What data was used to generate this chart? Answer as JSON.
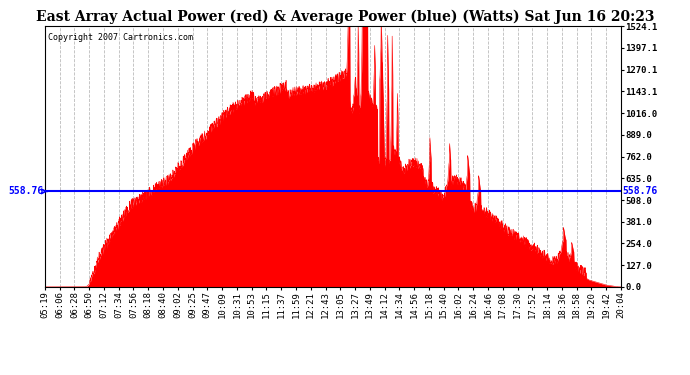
{
  "title": "East Array Actual Power (red) & Average Power (blue) (Watts) Sat Jun 16 20:23",
  "copyright": "Copyright 2007 Cartronics.com",
  "average_value": 558.76,
  "ymax": 1524.1,
  "yticks": [
    0.0,
    127.0,
    254.0,
    381.0,
    508.0,
    635.0,
    762.0,
    889.0,
    1016.0,
    1143.1,
    1270.1,
    1397.1,
    1524.1
  ],
  "xtick_labels": [
    "05:19",
    "06:06",
    "06:28",
    "06:50",
    "07:12",
    "07:34",
    "07:56",
    "08:18",
    "08:40",
    "09:02",
    "09:25",
    "09:47",
    "10:09",
    "10:31",
    "10:53",
    "11:15",
    "11:37",
    "11:59",
    "12:21",
    "12:43",
    "13:05",
    "13:27",
    "13:49",
    "14:12",
    "14:34",
    "14:56",
    "15:18",
    "15:40",
    "16:02",
    "16:24",
    "16:46",
    "17:08",
    "17:30",
    "17:52",
    "18:14",
    "18:36",
    "18:58",
    "19:20",
    "19:42",
    "20:04"
  ],
  "background_color": "#ffffff",
  "plot_bg_color": "#ffffff",
  "grid_color": "#aaaaaa",
  "fill_color": "#ff0000",
  "line_color": "#ff0000",
  "avg_line_color": "#0000ff",
  "title_fontsize": 10,
  "tick_fontsize": 6.5,
  "avg_label_fontsize": 7,
  "copyright_fontsize": 6
}
